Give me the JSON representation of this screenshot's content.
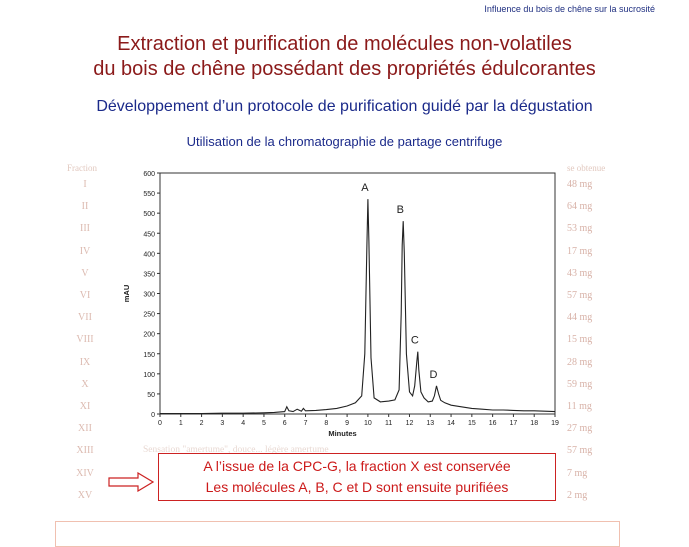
{
  "header_note": "Influence du bois de chêne sur la sucrosité",
  "title_lines": [
    "Extraction et purification de molécules non-volatiles",
    "du bois de chêne possédant des propriétés édulcorantes"
  ],
  "subtitle": "Développement d’un protocole de purification guidé par la dégustation",
  "method": "Utilisation de la chromatographie de partage centrifuge",
  "background_table": {
    "col_fraction": "Fraction",
    "col_mass": "se obtenue",
    "rows": [
      {
        "fraction": "I",
        "mass": "48 mg"
      },
      {
        "fraction": "II",
        "mass": "64 mg"
      },
      {
        "fraction": "III",
        "mass": "53 mg"
      },
      {
        "fraction": "IV",
        "mass": "17 mg"
      },
      {
        "fraction": "V",
        "mass": "43 mg"
      },
      {
        "fraction": "VI",
        "mass": "57 mg"
      },
      {
        "fraction": "VII",
        "mass": "44 mg"
      },
      {
        "fraction": "VIII",
        "mass": "15 mg"
      },
      {
        "fraction": "IX",
        "mass": "28 mg"
      },
      {
        "fraction": "X",
        "mass": "59 mg"
      },
      {
        "fraction": "XI",
        "mass": "11 mg"
      },
      {
        "fraction": "XII",
        "mass": "27 mg"
      },
      {
        "fraction": "XIII",
        "mass": "57 mg"
      },
      {
        "fraction": "XIV",
        "mass": "7 mg"
      },
      {
        "fraction": "XV",
        "mass": "2 mg"
      }
    ],
    "desc_XIII": "Sensation \"amertume\", douce... légère amertume"
  },
  "chart_data": {
    "type": "line",
    "xlabel": "Minutes",
    "ylabel": "mAU",
    "xlim": [
      0,
      19
    ],
    "ylim": [
      0,
      600
    ],
    "xticks": [
      0,
      1,
      2,
      3,
      4,
      5,
      6,
      7,
      8,
      9,
      10,
      11,
      12,
      13,
      14,
      15,
      16,
      17,
      18,
      19
    ],
    "yticks": [
      0,
      50,
      100,
      150,
      200,
      250,
      300,
      350,
      400,
      450,
      500,
      550,
      600
    ],
    "peaks": [
      {
        "label": "A",
        "x": 10.0,
        "y": 535
      },
      {
        "label": "B",
        "x": 11.7,
        "y": 480
      },
      {
        "label": "C",
        "x": 12.4,
        "y": 155
      },
      {
        "label": "D",
        "x": 13.3,
        "y": 70
      }
    ],
    "series": [
      {
        "x": [
          0,
          0.5,
          1,
          2,
          3,
          4,
          5,
          5.5,
          6,
          6.1,
          6.2,
          6.4,
          6.6,
          6.8,
          6.9,
          7,
          7.5,
          8,
          8.5,
          9,
          9.4,
          9.7,
          9.85,
          9.95,
          10.0,
          10.05,
          10.15,
          10.3,
          10.6,
          11,
          11.3,
          11.5,
          11.6,
          11.65,
          11.7,
          11.75,
          11.85,
          12.0,
          12.15,
          12.25,
          12.35,
          12.4,
          12.45,
          12.55,
          12.7,
          12.9,
          13.1,
          13.2,
          13.3,
          13.4,
          13.5,
          13.7,
          14,
          14.5,
          15,
          15.5,
          16,
          16.5,
          17,
          17.5,
          18,
          18.5,
          19
        ],
        "y": [
          1,
          1,
          1,
          1,
          2,
          2,
          3,
          4,
          6,
          18,
          8,
          6,
          12,
          7,
          14,
          8,
          9,
          11,
          14,
          20,
          28,
          45,
          150,
          420,
          535,
          430,
          140,
          40,
          30,
          32,
          35,
          60,
          250,
          420,
          480,
          400,
          150,
          55,
          45,
          70,
          130,
          155,
          110,
          55,
          40,
          30,
          32,
          45,
          70,
          50,
          34,
          28,
          22,
          18,
          14,
          12,
          10,
          10,
          9,
          8,
          8,
          7,
          6
        ]
      }
    ]
  },
  "conclusion": {
    "line1": "A l’issue de la CPC-G, la fraction X est conservée",
    "line2": "Les molécules A, B, C et D sont ensuite purifiées"
  }
}
